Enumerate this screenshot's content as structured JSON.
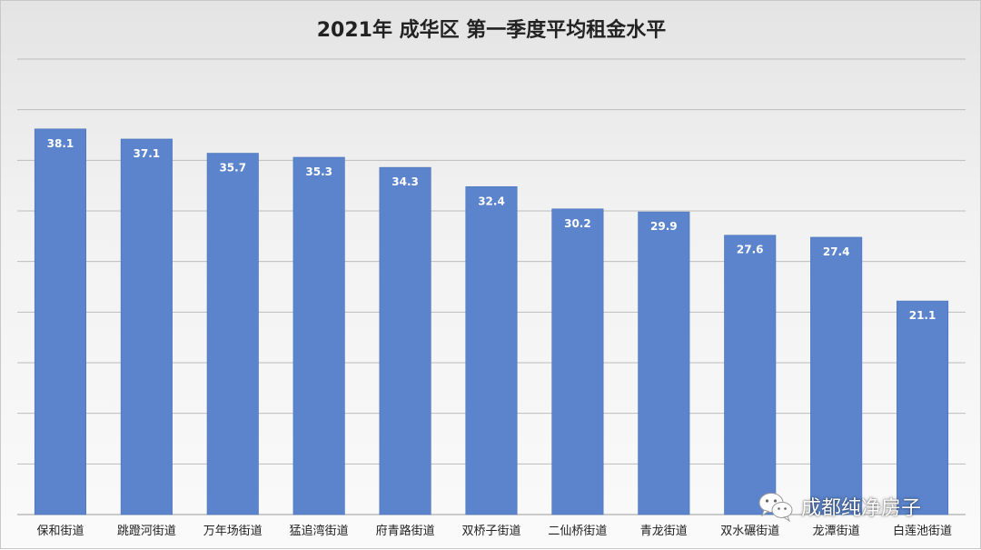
{
  "chart_data": {
    "type": "bar",
    "title": "2021年 成华区 第一季度平均租金水平",
    "xlabel": "",
    "ylabel": "",
    "ylim": [
      0,
      45
    ],
    "grid": true,
    "categories": [
      "保和街道",
      "跳蹬河街道",
      "万年场街道",
      "猛追湾街道",
      "府青路街道",
      "双桥子街道",
      "二仙桥街道",
      "青龙街道",
      "双水碾街道",
      "龙潭街道",
      "白莲池街道"
    ],
    "values": [
      38.1,
      37.1,
      35.7,
      35.3,
      34.3,
      32.4,
      30.2,
      29.9,
      27.6,
      27.4,
      21.1
    ],
    "data_labels": [
      "38.1",
      "37.1",
      "35.7",
      "35.3",
      "34.3",
      "32.4",
      "30.2",
      "29.9",
      "27.6",
      "27.4",
      "21.1"
    ],
    "bar_color": "#5b84cc"
  },
  "watermark": {
    "text": "成都纯净房子",
    "icon": "wechat-icon"
  }
}
